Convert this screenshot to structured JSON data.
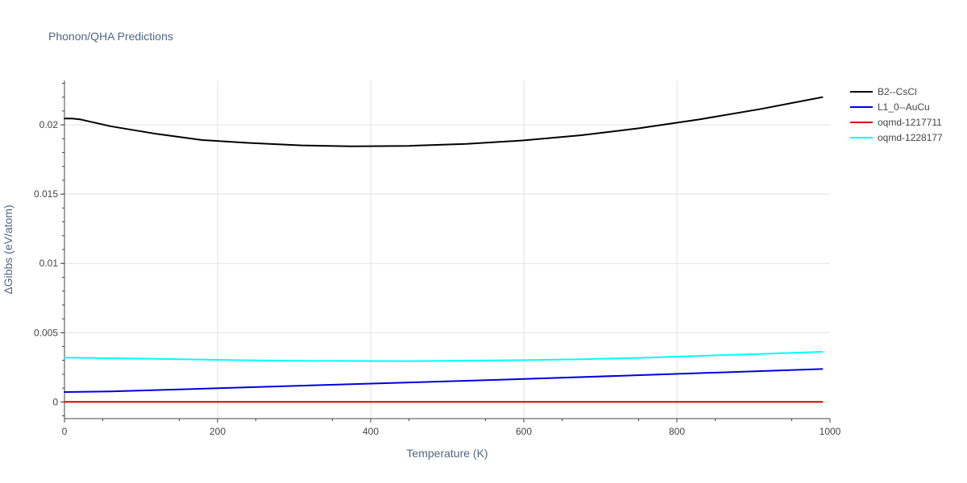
{
  "chart_data": {
    "type": "line",
    "title": "Phonon/QHA Predictions",
    "xlabel": "Temperature (K)",
    "ylabel": "ΔGibbs (eV/atom)",
    "xlim": [
      0,
      1000
    ],
    "ylim": [
      -0.0012,
      0.0232
    ],
    "x_ticks": [
      {
        "value": 0,
        "label": "0"
      },
      {
        "value": 200,
        "label": "200"
      },
      {
        "value": 400,
        "label": "400"
      },
      {
        "value": 600,
        "label": "600"
      },
      {
        "value": 800,
        "label": "800"
      },
      {
        "value": 1000,
        "label": "1000"
      }
    ],
    "y_ticks": [
      {
        "value": 0,
        "label": "0"
      },
      {
        "value": 0.005,
        "label": "0.005"
      },
      {
        "value": 0.01,
        "label": "0.01"
      },
      {
        "value": 0.015,
        "label": "0.015"
      },
      {
        "value": 0.02,
        "label": "0.02"
      }
    ],
    "grid": true,
    "legend_position": "top-right",
    "series": [
      {
        "name": "B2--CsCl",
        "color": "#000000",
        "x": [
          0,
          10,
          20,
          60,
          120,
          180,
          240,
          310,
          375,
          450,
          525,
          600,
          675,
          750,
          830,
          910,
          990
        ],
        "y": [
          0.02045,
          0.02045,
          0.0204,
          0.0199,
          0.01935,
          0.0189,
          0.0187,
          0.01852,
          0.01845,
          0.01848,
          0.01862,
          0.01888,
          0.01925,
          0.01975,
          0.0204,
          0.02115,
          0.022
        ]
      },
      {
        "name": "L1_0--AuCu",
        "color": "#0000dd",
        "x": [
          0,
          60,
          150,
          300,
          450,
          600,
          775,
          990
        ],
        "y": [
          0.00072,
          0.00076,
          0.00091,
          0.00116,
          0.00141,
          0.00166,
          0.00198,
          0.00238
        ]
      },
      {
        "name": "oqmd-1217711",
        "color": "#dd0000",
        "x": [
          0,
          990
        ],
        "y": [
          0,
          0
        ]
      },
      {
        "name": "oqmd-1228177",
        "color": "#00ffff",
        "x": [
          0,
          75,
          150,
          225,
          300,
          375,
          450,
          525,
          600,
          675,
          750,
          825,
          900,
          990
        ],
        "y": [
          0.0032,
          0.00315,
          0.00308,
          0.00302,
          0.00297,
          0.00296,
          0.00295,
          0.00298,
          0.00302,
          0.00309,
          0.00318,
          0.00332,
          0.00345,
          0.00362
        ]
      }
    ]
  }
}
